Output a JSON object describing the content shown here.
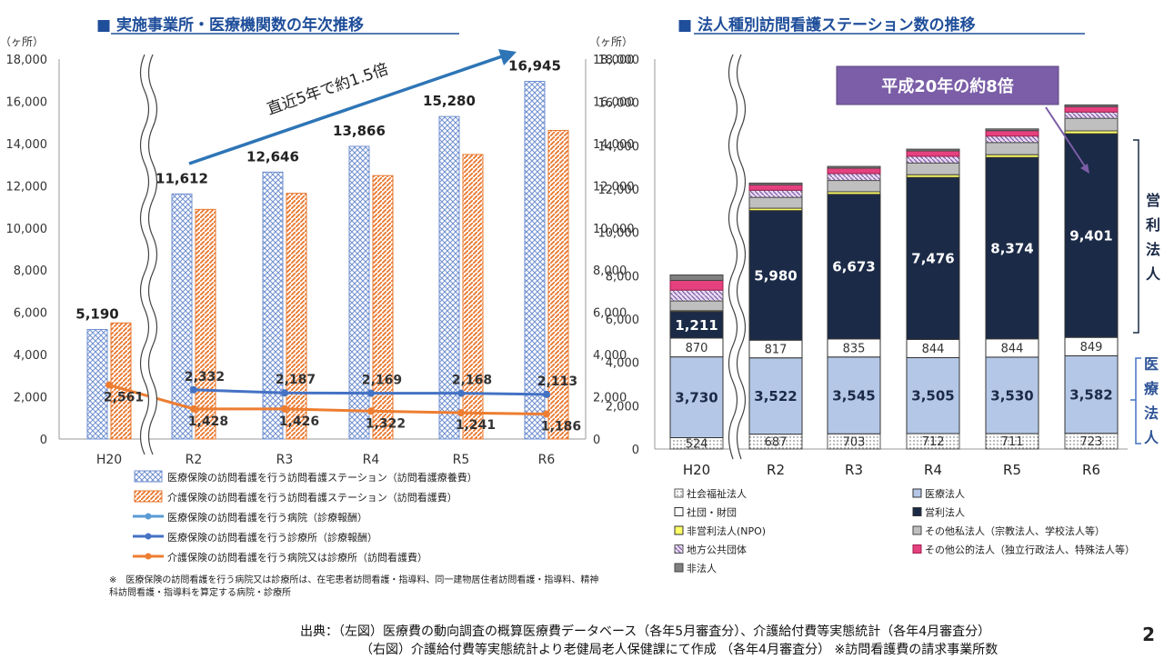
{
  "left_title": "■ 実施事業所・医療機関数の年次推移",
  "right_title": "■ 法人種別訪問看護ステーション数の推移",
  "left_yunit": "（ヶ所）",
  "left_yunit2": "（ヶ所）",
  "right_yunit": "（ヶ所）",
  "trend_label": "直近5年で約1.5倍",
  "callout_label": "平成20年の約8倍",
  "bracket_for_profit": "営利法人",
  "bracket_medical": "医療法人",
  "note": "※　医療保険の訪問看護を行う病院又は診療所は、在宅患者訪問看護・指導料、同一建物居住者訪問看護・指導料、精神科訪問看護・指導料を算定する病院・診療所",
  "footer_line1": "出典：（左図）医療費の動向調査の概算医療費データベース（各年5月審査分）、介護給付費等実態統計（各年4月審査分）",
  "footer_line2": "（右図）介護給付費等実態統計より老健局老人保健課にて作成 （各年4月審査分） ※訪問看護費の請求事業所数",
  "page_number": "2",
  "colors": {
    "title_blue": "#1f4e9a",
    "station_medical": "#6f8fcf",
    "station_care": "#e8772e",
    "hospital_line": "#5b9bd5",
    "clinic_line": "#4472c4",
    "care_clinic_line": "#ed7d31",
    "callout_bg": "#7b5ea7",
    "for_profit": "#1b2a47",
    "medical_corp": "#b4c7e7"
  },
  "chart_data": [
    {
      "type": "bar",
      "title": "実施事業所・医療機関数の年次推移",
      "categories": [
        "H20",
        "R2",
        "R3",
        "R4",
        "R5",
        "R6"
      ],
      "ylim": [
        0,
        18000
      ],
      "yticks": [
        "0",
        "2,000",
        "4,000",
        "6,000",
        "8,000",
        "10,000",
        "12,000",
        "14,000",
        "16,000",
        "18,000"
      ],
      "series": [
        {
          "name": "医療保険の訪問看護を行う訪問看護ステーション（訪問看護療養費）",
          "kind": "bar",
          "values": [
            5190,
            11612,
            12646,
            13866,
            15280,
            16945
          ],
          "labels": [
            "5,190",
            "11,612",
            "12,646",
            "13,866",
            "15,280",
            "16,945"
          ]
        },
        {
          "name": "介護保険の訪問看護を行う訪問看護ステーション（訪問看護費）",
          "kind": "bar",
          "values": [
            5500,
            10880,
            11640,
            12480,
            13480,
            14620
          ]
        },
        {
          "name": "医療保険の訪問看護を行う病院（診療報酬）",
          "kind": "line",
          "values": [
            null,
            null,
            null,
            null,
            null,
            null
          ]
        },
        {
          "name": "医療保険の訪問看護を行う診療所（診療報酬）",
          "kind": "line",
          "values": [
            null,
            2332,
            2187,
            2169,
            2168,
            2113
          ],
          "labels": [
            "",
            "2,332",
            "2,187",
            "2,169",
            "2,168",
            "2,113"
          ]
        },
        {
          "name": "介護保険の訪問看護を行う病院又は診療所（訪問看護費）",
          "kind": "line",
          "values": [
            2561,
            1428,
            1426,
            1322,
            1241,
            1186
          ],
          "labels": [
            "2,561",
            "1,428",
            "1,426",
            "1,322",
            "1,241",
            "1,186"
          ]
        }
      ]
    },
    {
      "type": "bar",
      "stacked": true,
      "title": "法人種別訪問看護ステーション数の推移",
      "categories": [
        "H20",
        "R2",
        "R3",
        "R4",
        "R5",
        "R6"
      ],
      "ylim": [
        0,
        18000
      ],
      "yticks": [
        "0",
        "2,000",
        "4,000",
        "6,000",
        "8,000",
        "10,000",
        "12,000",
        "14,000",
        "16,000",
        "18,000"
      ],
      "series": [
        {
          "name": "社会福祉法人",
          "values": [
            524,
            687,
            703,
            712,
            711,
            723
          ],
          "labels": [
            "524",
            "687",
            "703",
            "712",
            "711",
            "723"
          ]
        },
        {
          "name": "医療法人",
          "values": [
            3730,
            3522,
            3545,
            3505,
            3530,
            3582
          ],
          "labels": [
            "3,730",
            "3,522",
            "3,545",
            "3,505",
            "3,530",
            "3,582"
          ]
        },
        {
          "name": "社団・財団",
          "values": [
            870,
            817,
            835,
            844,
            844,
            849
          ],
          "labels": [
            "870",
            "817",
            "835",
            "844",
            "844",
            "849"
          ]
        },
        {
          "name": "営利法人",
          "values": [
            1211,
            5980,
            6673,
            7476,
            8374,
            9401
          ],
          "labels": [
            "1,211",
            "5,980",
            "6,673",
            "7,476",
            "8,374",
            "9,401"
          ]
        },
        {
          "name": "非営利法人(NPO)",
          "values": [
            50,
            110,
            120,
            125,
            128,
            130
          ]
        },
        {
          "name": "その他私法人（宗教法人、学校法人等）",
          "values": [
            450,
            500,
            520,
            540,
            560,
            580
          ]
        },
        {
          "name": "地方公共団体",
          "values": [
            500,
            330,
            320,
            310,
            300,
            290
          ]
        },
        {
          "name": "その他公的法人（独立行政法人、特殊法人等）",
          "values": [
            450,
            250,
            250,
            250,
            250,
            250
          ]
        },
        {
          "name": "非法人",
          "values": [
            250,
            80,
            80,
            80,
            80,
            80
          ]
        }
      ]
    }
  ]
}
